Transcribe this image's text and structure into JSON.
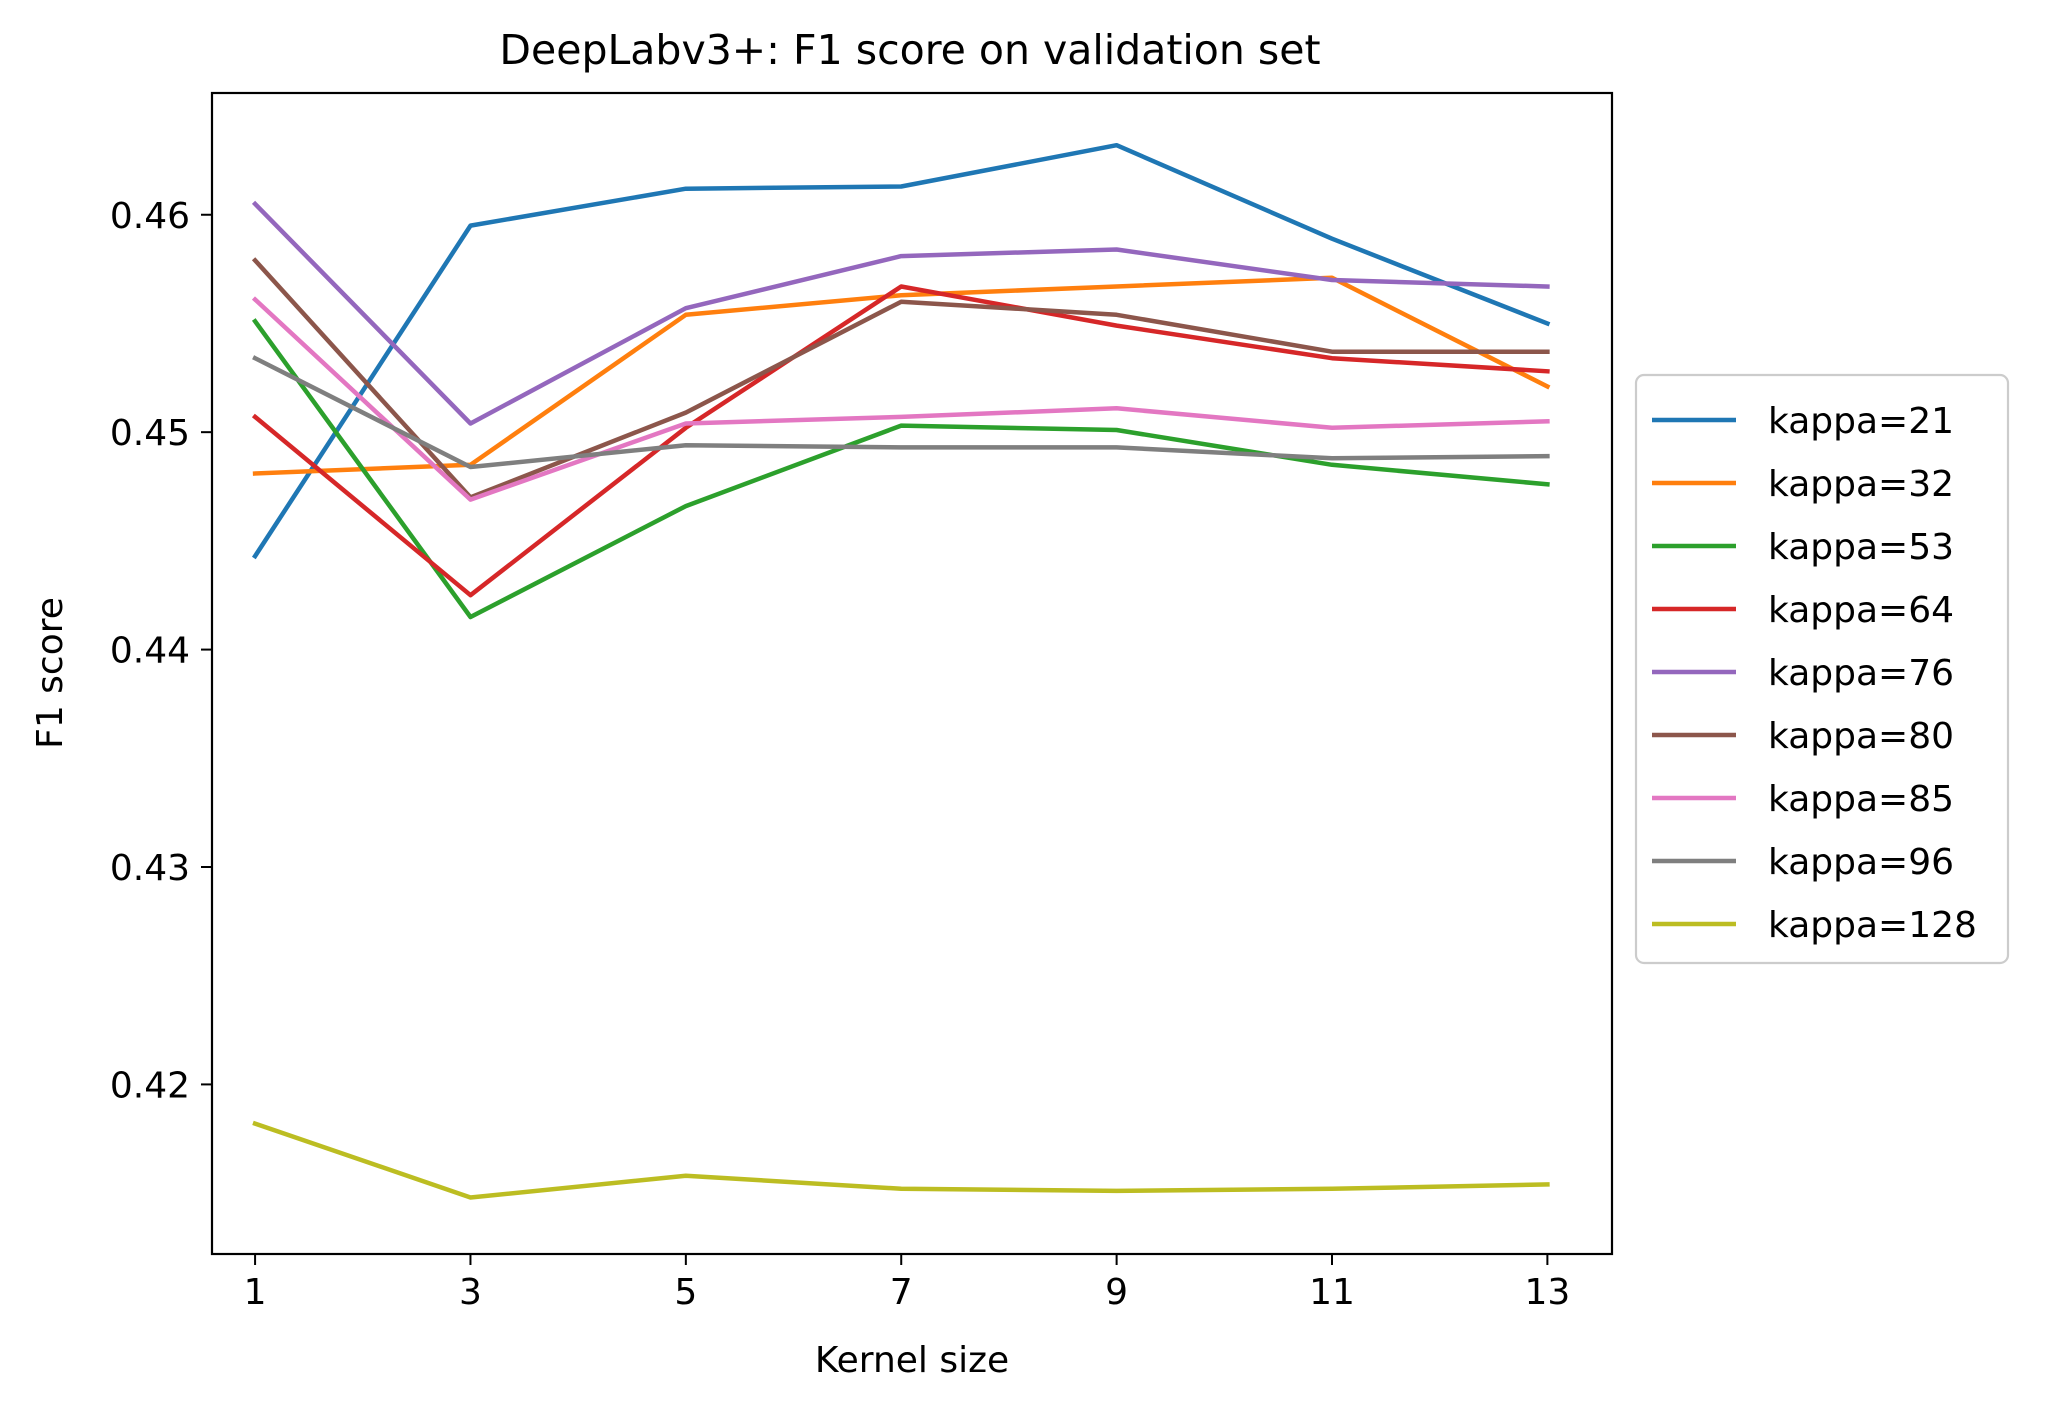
{
  "chart_data": {
    "type": "line",
    "title": "DeepLabv3+: F1 score on validation set",
    "xlabel": "Kernel size",
    "ylabel": "F1 score",
    "x": [
      1,
      3,
      5,
      7,
      9,
      11,
      13
    ],
    "xticks": [
      "1",
      "3",
      "5",
      "7",
      "9",
      "11",
      "13"
    ],
    "xlim": [
      0.6,
      13.6
    ],
    "yticks": [
      "0.42",
      "0.43",
      "0.44",
      "0.45",
      "0.46"
    ],
    "ytick_values": [
      0.42,
      0.43,
      0.44,
      0.45,
      0.46
    ],
    "ylim": [
      0.4122,
      0.4656
    ],
    "grid": false,
    "legend_position": "center-right-outside",
    "series": [
      {
        "name": "kappa=21",
        "color": "#1f77b4",
        "values": [
          0.4443,
          0.4595,
          0.4612,
          0.4613,
          0.4632,
          0.4589,
          0.455
        ]
      },
      {
        "name": "kappa=32",
        "color": "#ff7f0e",
        "values": [
          0.4481,
          0.4485,
          0.4554,
          0.4563,
          0.4567,
          0.4571,
          0.4521
        ]
      },
      {
        "name": "kappa=53",
        "color": "#2ca02c",
        "values": [
          0.4551,
          0.4415,
          0.4466,
          0.4503,
          0.4501,
          0.4485,
          0.4476
        ]
      },
      {
        "name": "kappa=64",
        "color": "#d62728",
        "values": [
          0.4507,
          0.4425,
          0.4502,
          0.4567,
          0.4549,
          0.4534,
          0.4528
        ]
      },
      {
        "name": "kappa=76",
        "color": "#9467bd",
        "values": [
          0.4605,
          0.4504,
          0.4557,
          0.4581,
          0.4584,
          0.457,
          0.4567
        ]
      },
      {
        "name": "kappa=80",
        "color": "#8c564b",
        "values": [
          0.4579,
          0.447,
          0.4509,
          0.456,
          0.4554,
          0.4537,
          0.4537
        ]
      },
      {
        "name": "kappa=85",
        "color": "#e377c2",
        "values": [
          0.4561,
          0.4469,
          0.4504,
          0.4507,
          0.4511,
          0.4502,
          0.4505
        ]
      },
      {
        "name": "kappa=96",
        "color": "#7f7f7f",
        "values": [
          0.4534,
          0.4484,
          0.4494,
          0.4493,
          0.4493,
          0.4488,
          0.4489
        ]
      },
      {
        "name": "kappa=128",
        "color": "#bcbd22",
        "values": [
          0.4182,
          0.4148,
          0.4158,
          0.4152,
          0.4151,
          0.4152,
          0.4154
        ]
      }
    ]
  }
}
